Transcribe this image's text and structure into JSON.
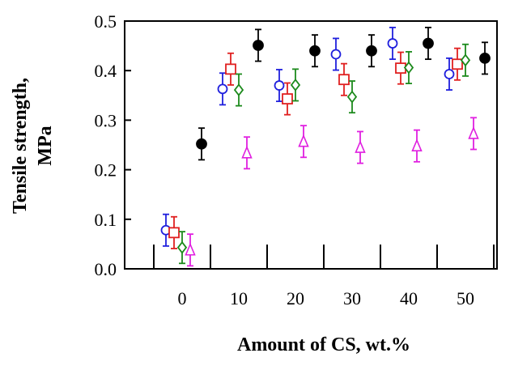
{
  "chart_data": {
    "type": "scatter",
    "title": "",
    "xlabel": "Amount of CS, wt.%",
    "ylabel_line1": "Tensile strength,",
    "ylabel_line2": "MPa",
    "categories": [
      "0",
      "10",
      "20",
      "30",
      "40",
      "50"
    ],
    "ylim": [
      0.0,
      0.5
    ],
    "yticks": [
      "0.0",
      "0.1",
      "0.2",
      "0.3",
      "0.4",
      "0.5"
    ],
    "grid": false,
    "legend": "none",
    "series": [
      {
        "name": "series-blue-circle",
        "marker": "circle",
        "filled": false,
        "color": "#1f1fdd",
        "values": [
          0.078,
          0.363,
          0.37,
          0.433,
          0.455,
          0.393
        ],
        "errors": [
          0.032,
          0.032,
          0.032,
          0.032,
          0.032,
          0.032
        ]
      },
      {
        "name": "series-red-square",
        "marker": "square",
        "filled": false,
        "color": "#e02020",
        "values": [
          0.073,
          0.403,
          0.343,
          0.382,
          0.405,
          0.413
        ],
        "errors": [
          0.032,
          0.032,
          0.032,
          0.032,
          0.032,
          0.032
        ]
      },
      {
        "name": "series-green-diamond",
        "marker": "diamond",
        "filled": false,
        "color": "#1c8a1c",
        "values": [
          0.043,
          0.361,
          0.371,
          0.347,
          0.406,
          0.421
        ],
        "errors": [
          0.032,
          0.032,
          0.032,
          0.032,
          0.032,
          0.032
        ]
      },
      {
        "name": "series-magenta-triangle",
        "marker": "triangle",
        "filled": false,
        "color": "#e020e0",
        "values": [
          0.038,
          0.234,
          0.257,
          0.245,
          0.248,
          0.273
        ],
        "errors": [
          0.032,
          0.032,
          0.032,
          0.032,
          0.032,
          0.032
        ]
      },
      {
        "name": "series-black-filled-circle",
        "marker": "circle",
        "filled": true,
        "color": "#000000",
        "values": [
          0.252,
          0.451,
          0.44,
          0.44,
          0.455,
          0.425
        ],
        "errors": [
          0.032,
          0.032,
          0.032,
          0.032,
          0.032,
          0.032
        ]
      }
    ]
  }
}
